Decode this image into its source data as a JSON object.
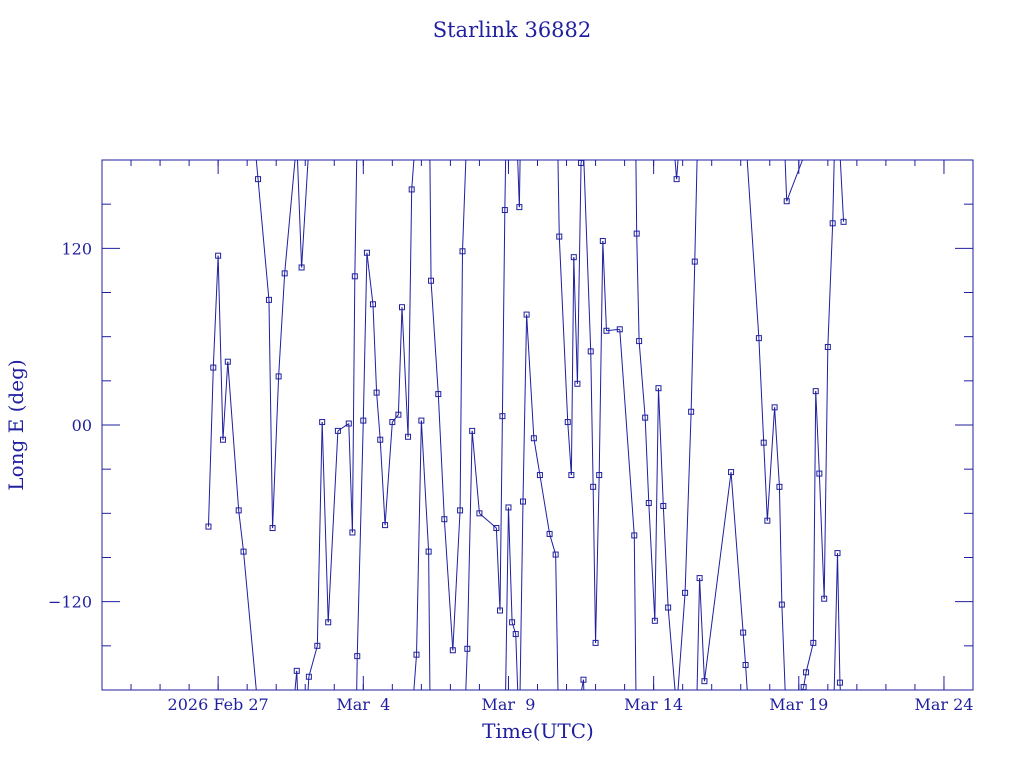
{
  "chart_data": {
    "type": "line",
    "title": "Starlink 36882",
    "xlabel": "Time(UTC)",
    "ylabel": "Long E (deg)",
    "xlim": [
      "2026-02-23",
      "2026-03-25"
    ],
    "ylim": [
      -180,
      180
    ],
    "x_tick_labels": [
      {
        "date": "2026-02-27",
        "label": "2026 Feb 27"
      },
      {
        "date": "2026-03-04",
        "label": "Mar  4"
      },
      {
        "date": "2026-03-09",
        "label": "Mar  9"
      },
      {
        "date": "2026-03-14",
        "label": "Mar 14"
      },
      {
        "date": "2026-03-19",
        "label": "Mar 19"
      },
      {
        "date": "2026-03-24",
        "label": "Mar 24"
      }
    ],
    "y_tick_labels": [
      {
        "value": 120,
        "label": "120"
      },
      {
        "value": 0,
        "label": "00"
      },
      {
        "value": -120,
        "label": "−120"
      }
    ],
    "grid": false,
    "series": [
      {
        "color": "#1f1fa0",
        "marker": "square",
        "points": [
          [
            "2026-02-26 16:00",
            -69
          ],
          [
            "2026-02-26 20:00",
            39
          ],
          [
            "2026-02-27 00:00",
            115
          ],
          [
            "2026-02-27 04:00",
            -10
          ],
          [
            "2026-02-27 08:00",
            43
          ],
          [
            "2026-02-27 17:00",
            -58
          ],
          [
            "2026-02-27 21:00",
            -86
          ],
          [
            "2026-02-28 09:00",
            167
          ],
          [
            "2026-02-28 18:00",
            85
          ],
          [
            "2026-02-28 21:00",
            -70
          ],
          [
            "2026-03-01 02:00",
            33
          ],
          [
            "2026-03-01 07:00",
            103
          ],
          [
            "2026-03-01 17:00",
            -167
          ],
          [
            "2026-03-01 21:00",
            107
          ],
          [
            "2026-03-02 03:00",
            -171
          ],
          [
            "2026-03-02 10:00",
            -150
          ],
          [
            "2026-03-02 14:00",
            2
          ],
          [
            "2026-03-02 19:00",
            -134
          ],
          [
            "2026-03-03 03:00",
            -4
          ],
          [
            "2026-03-03 12:00",
            1
          ],
          [
            "2026-03-03 15:00",
            -73
          ],
          [
            "2026-03-03 17:00",
            101
          ],
          [
            "2026-03-03 19:00",
            -157
          ],
          [
            "2026-03-04 00:00",
            3
          ],
          [
            "2026-03-04 03:00",
            117
          ],
          [
            "2026-03-04 08:00",
            82
          ],
          [
            "2026-03-04 11:00",
            22
          ],
          [
            "2026-03-04 14:00",
            -10
          ],
          [
            "2026-03-04 18:00",
            -68
          ],
          [
            "2026-03-05 00:00",
            2
          ],
          [
            "2026-03-05 05:00",
            7
          ],
          [
            "2026-03-05 08:00",
            80
          ],
          [
            "2026-03-05 13:00",
            -8
          ],
          [
            "2026-03-05 16:00",
            160
          ],
          [
            "2026-03-05 20:00",
            -156
          ],
          [
            "2026-03-06 00:00",
            3
          ],
          [
            "2026-03-06 06:00",
            -86
          ],
          [
            "2026-03-06 08:00",
            98
          ],
          [
            "2026-03-06 14:00",
            21
          ],
          [
            "2026-03-06 19:00",
            -64
          ],
          [
            "2026-03-07 02:00",
            -153
          ],
          [
            "2026-03-07 08:00",
            -58
          ],
          [
            "2026-03-07 10:00",
            118
          ],
          [
            "2026-03-07 14:00",
            -152
          ],
          [
            "2026-03-07 18:00",
            -4
          ],
          [
            "2026-03-08 00:00",
            -60
          ],
          [
            "2026-03-08 14:00",
            -70
          ],
          [
            "2026-03-08 17:00",
            -126
          ],
          [
            "2026-03-08 19:00",
            6
          ],
          [
            "2026-03-08 21:00",
            146
          ],
          [
            "2026-03-09 00:00",
            -56
          ],
          [
            "2026-03-09 03:00",
            -134
          ],
          [
            "2026-03-09 06:00",
            -142
          ],
          [
            "2026-03-09 09:00",
            148
          ],
          [
            "2026-03-09 12:00",
            -52
          ],
          [
            "2026-03-09 15:00",
            75
          ],
          [
            "2026-03-09 21:00",
            -9
          ],
          [
            "2026-03-10 02:00",
            -34
          ],
          [
            "2026-03-10 10:00",
            -74
          ],
          [
            "2026-03-10 15:00",
            -88
          ],
          [
            "2026-03-10 18:00",
            128
          ],
          [
            "2026-03-11 01:00",
            2
          ],
          [
            "2026-03-11 04:00",
            -34
          ],
          [
            "2026-03-11 06:00",
            114
          ],
          [
            "2026-03-11 09:00",
            28
          ],
          [
            "2026-03-11 12:00",
            178
          ],
          [
            "2026-03-11 14:00",
            -173
          ],
          [
            "2026-03-11 20:00",
            50
          ],
          [
            "2026-03-11 22:00",
            -42
          ],
          [
            "2026-03-12 00:00",
            -148
          ],
          [
            "2026-03-12 03:00",
            -34
          ],
          [
            "2026-03-12 06:00",
            125
          ],
          [
            "2026-03-12 09:00",
            64
          ],
          [
            "2026-03-12 20:00",
            65
          ],
          [
            "2026-03-13 08:00",
            -75
          ],
          [
            "2026-03-13 10:00",
            130
          ],
          [
            "2026-03-13 12:00",
            57
          ],
          [
            "2026-03-13 17:00",
            5
          ],
          [
            "2026-03-13 20:00",
            -53
          ],
          [
            "2026-03-14 01:00",
            -133
          ],
          [
            "2026-03-14 04:00",
            25
          ],
          [
            "2026-03-14 08:00",
            -55
          ],
          [
            "2026-03-14 12:00",
            -124
          ],
          [
            "2026-03-14 19:00",
            167
          ],
          [
            "2026-03-15 02:00",
            -114
          ],
          [
            "2026-03-15 07:00",
            9
          ],
          [
            "2026-03-15 10:00",
            111
          ],
          [
            "2026-03-15 14:00",
            -104
          ],
          [
            "2026-03-15 18:00",
            -174
          ],
          [
            "2026-03-16 16:00",
            -32
          ],
          [
            "2026-03-17 02:00",
            -141
          ],
          [
            "2026-03-17 04:00",
            -163
          ],
          [
            "2026-03-17 15:00",
            59
          ],
          [
            "2026-03-17 19:00",
            -12
          ],
          [
            "2026-03-17 22:00",
            -65
          ],
          [
            "2026-03-18 04:00",
            12
          ],
          [
            "2026-03-18 08:00",
            -42
          ],
          [
            "2026-03-18 10:00",
            -122
          ],
          [
            "2026-03-18 14:00",
            152
          ],
          [
            "2026-03-19 04:00",
            -178
          ],
          [
            "2026-03-19 06:00",
            -168
          ],
          [
            "2026-03-19 12:00",
            -148
          ],
          [
            "2026-03-19 14:00",
            23
          ],
          [
            "2026-03-19 17:00",
            -33
          ],
          [
            "2026-03-19 21:00",
            -118
          ],
          [
            "2026-03-20 00:00",
            53
          ],
          [
            "2026-03-20 04:00",
            137
          ],
          [
            "2026-03-20 08:00",
            -87
          ],
          [
            "2026-03-20 10:00",
            -175
          ],
          [
            "2026-03-20 13:00",
            138
          ]
        ]
      }
    ]
  }
}
